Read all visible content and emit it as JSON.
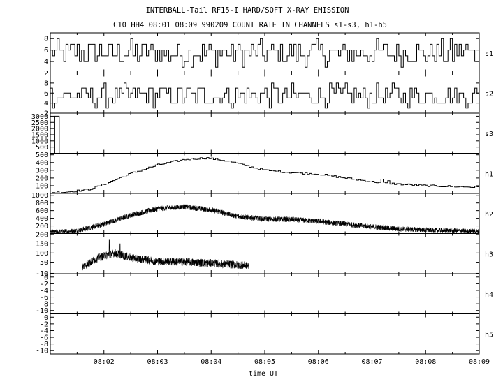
{
  "title": "INTERBALL-Tail RF15-I HARD/SOFT X-RAY EMISSION",
  "subtitle": "C10 HH4 08:01 08:09 990209  COUNT RATE IN CHANNELS s1-s3, h1-h5",
  "chart_data": {
    "type": "line",
    "title": "INTERBALL-Tail RF15-I HARD/SOFT X-RAY EMISSION",
    "subtitle": "C10 HH4 08:01 08:09 990209  COUNT RATE IN CHANNELS s1-s3, h1-h5",
    "xlabel": "time UT",
    "x_tick_labels": [
      "08:02",
      "08:03",
      "08:04",
      "08:05",
      "08:06",
      "08:07",
      "08:08",
      "08:09"
    ],
    "x_range_minutes": [
      0,
      8
    ],
    "x_start": "08:01",
    "grid": false,
    "legend": "none",
    "panels": [
      {
        "name": "s1",
        "ylim": [
          2,
          9
        ],
        "yticks": [
          2,
          4,
          6,
          8
        ],
        "style": "step",
        "profile": [
          [
            0,
            5.5
          ],
          [
            8,
            5.5
          ]
        ],
        "noise": 2.2
      },
      {
        "name": "s2",
        "ylim": [
          2,
          10
        ],
        "yticks": [
          2,
          4,
          6,
          8
        ],
        "style": "step",
        "profile": [
          [
            0,
            5.5
          ],
          [
            8,
            5.5
          ]
        ],
        "noise": 2.2
      },
      {
        "name": "s3",
        "ylim": [
          0,
          3250
        ],
        "yticks": [
          500,
          1000,
          1500,
          2000,
          2500,
          3000
        ],
        "style": "step",
        "profile": [
          [
            0,
            0
          ],
          [
            8,
            0
          ]
        ],
        "noise": 0,
        "spikes": [
          [
            0.1,
            3000
          ]
        ]
      },
      {
        "name": "h1",
        "ylim": [
          0,
          520
        ],
        "yticks": [
          100,
          200,
          300,
          400,
          500
        ],
        "style": "step",
        "profile": [
          [
            0,
            10
          ],
          [
            0.3,
            20
          ],
          [
            0.7,
            50
          ],
          [
            1.0,
            120
          ],
          [
            1.5,
            260
          ],
          [
            2.0,
            370
          ],
          [
            2.5,
            440
          ],
          [
            2.9,
            460
          ],
          [
            3.3,
            420
          ],
          [
            3.7,
            350
          ],
          [
            4.0,
            300
          ],
          [
            4.5,
            270
          ],
          [
            5.0,
            250
          ],
          [
            5.5,
            200
          ],
          [
            6.0,
            150
          ],
          [
            6.5,
            120
          ],
          [
            7.0,
            100
          ],
          [
            7.5,
            90
          ],
          [
            8.0,
            80
          ]
        ],
        "noise": 12,
        "spikes": [
          [
            6.15,
            185
          ],
          [
            6.3,
            165
          ]
        ]
      },
      {
        "name": "h2",
        "ylim": [
          0,
          1050
        ],
        "yticks": [
          200,
          400,
          600,
          800,
          1000
        ],
        "style": "noise",
        "profile": [
          [
            0,
            30
          ],
          [
            0.5,
            70
          ],
          [
            1.0,
            250
          ],
          [
            1.5,
            480
          ],
          [
            2.0,
            650
          ],
          [
            2.5,
            700
          ],
          [
            3.0,
            620
          ],
          [
            3.5,
            450
          ],
          [
            4.0,
            380
          ],
          [
            4.5,
            370
          ],
          [
            5.0,
            320
          ],
          [
            5.5,
            250
          ],
          [
            6.0,
            180
          ],
          [
            6.5,
            120
          ],
          [
            7.0,
            90
          ],
          [
            7.5,
            70
          ],
          [
            8.0,
            50
          ]
        ],
        "noise": 70,
        "spikes": [
          [
            6.22,
            240
          ]
        ]
      },
      {
        "name": "h3",
        "ylim": [
          -12,
          205
        ],
        "yticks": [
          -10,
          50,
          100,
          150,
          200
        ],
        "style": "noise",
        "profile": [
          [
            0.6,
            25
          ],
          [
            0.9,
            75
          ],
          [
            1.2,
            100
          ],
          [
            1.5,
            75
          ],
          [
            2.0,
            55
          ],
          [
            2.5,
            52
          ],
          [
            3.0,
            45
          ],
          [
            3.5,
            35
          ],
          [
            3.7,
            30
          ]
        ],
        "noise": 22,
        "spikes": [
          [
            1.1,
            170
          ],
          [
            1.3,
            150
          ]
        ],
        "range": [
          0.6,
          3.7
        ]
      },
      {
        "name": "h4",
        "ylim": [
          -11,
          1
        ],
        "yticks": [
          -10,
          -8,
          -6,
          -4,
          -2,
          0
        ],
        "style": "none",
        "profile": []
      },
      {
        "name": "h5",
        "ylim": [
          -11,
          1
        ],
        "yticks": [
          -10,
          -8,
          -6,
          -4,
          -2,
          0
        ],
        "style": "none",
        "profile": []
      }
    ]
  }
}
